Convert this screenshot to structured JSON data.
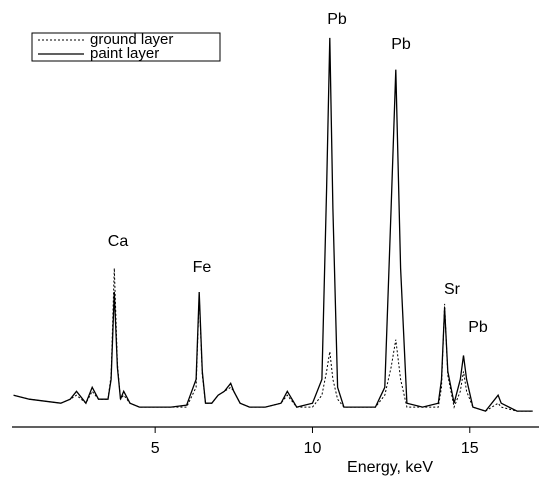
{
  "chart_data": {
    "type": "line",
    "x_label": "Energy, keV",
    "x": [
      0.5,
      1.0,
      1.5,
      2.0,
      2.3,
      2.5,
      2.8,
      3.0,
      3.2,
      3.5,
      3.6,
      3.7,
      3.8,
      3.9,
      4.0,
      4.2,
      4.5,
      5.0,
      5.5,
      6.0,
      6.3,
      6.4,
      6.5,
      6.6,
      6.8,
      7.0,
      7.2,
      7.4,
      7.5,
      7.7,
      8.0,
      8.5,
      9.0,
      9.2,
      9.5,
      10.0,
      10.3,
      10.45,
      10.55,
      10.65,
      10.8,
      11.0,
      11.5,
      12.0,
      12.3,
      12.5,
      12.65,
      12.8,
      13.0,
      13.5,
      14.0,
      14.1,
      14.2,
      14.3,
      14.5,
      14.7,
      14.8,
      14.9,
      15.1,
      15.5,
      15.9,
      16.0,
      16.5,
      17.0
    ],
    "series": [
      {
        "name": "ground layer",
        "color": "#000000",
        "dash": "dotted",
        "values": [
          8,
          7,
          6.5,
          6,
          7,
          8,
          6,
          9,
          7,
          7,
          13,
          40,
          16,
          7,
          8,
          6,
          5,
          5,
          5,
          5,
          10,
          33,
          13,
          6,
          6,
          8,
          9,
          10,
          9,
          6,
          5,
          5,
          6,
          8,
          5,
          5,
          8,
          14,
          19,
          12,
          7,
          5,
          5,
          5,
          8,
          15,
          22,
          12,
          5,
          5,
          5,
          10,
          31,
          13,
          5,
          9,
          14,
          9,
          5,
          4,
          6,
          5,
          4,
          4
        ]
      },
      {
        "name": "paint layer",
        "color": "#000000",
        "dash": "solid",
        "values": [
          8,
          7,
          6.5,
          6,
          7,
          9,
          6,
          10,
          7,
          7,
          12,
          34,
          15,
          7,
          9,
          6,
          5,
          5,
          5,
          5.5,
          12,
          34,
          14,
          6,
          6,
          8,
          9,
          11,
          9,
          6,
          5,
          5,
          6,
          9,
          5,
          6,
          12,
          60,
          98,
          55,
          10,
          5,
          5,
          5,
          10,
          55,
          90,
          40,
          6,
          5,
          6,
          12,
          30,
          14,
          6,
          12,
          18,
          12,
          5,
          4,
          8,
          6,
          4,
          4
        ]
      }
    ],
    "annotations": [
      "Ca",
      "Fe",
      "Pb",
      "Pb",
      "Sr",
      "Pb"
    ],
    "xlim": [
      0.45,
      17.2
    ],
    "xticks": [
      5,
      10,
      15
    ],
    "ylim": [
      0,
      100
    ],
    "legend": "upper left"
  }
}
